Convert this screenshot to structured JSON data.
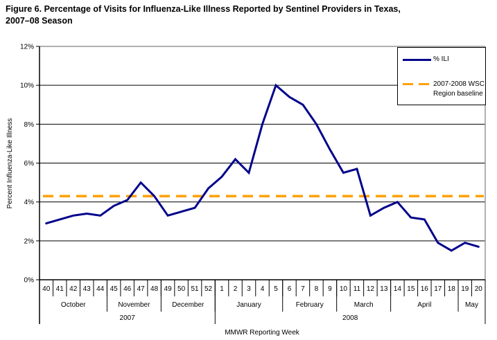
{
  "title": {
    "line1": "Figure 6. Percentage of Visits for Influenza-Like Illness Reported by Sentinel Providers in Texas,",
    "line2": "2007–08 Season"
  },
  "legend": {
    "ili_label": "% ILI",
    "baseline_line1": "2007-2008 WSC",
    "baseline_line2": "Region baseline"
  },
  "chart_data": {
    "type": "line",
    "title": "Figure 6. Percentage of Visits for Influenza-Like Illness Reported by Sentinel Providers in Texas, 2007–08 Season",
    "xlabel": "MMWR Reporting Week",
    "ylabel": "Percent Influenza-Like Illness",
    "ylim": [
      0,
      12
    ],
    "ytick_interval": 2,
    "ytick_labels": [
      "0%",
      "2%",
      "4%",
      "6%",
      "8%",
      "10%",
      "12%"
    ],
    "grid": "horizontal",
    "legend_position": "top-right",
    "categories": [
      "40",
      "41",
      "42",
      "43",
      "44",
      "45",
      "46",
      "47",
      "48",
      "49",
      "50",
      "51",
      "52",
      "1",
      "2",
      "3",
      "4",
      "5",
      "6",
      "7",
      "8",
      "9",
      "10",
      "11",
      "12",
      "13",
      "14",
      "15",
      "16",
      "17",
      "18",
      "19",
      "20"
    ],
    "month_groups": [
      {
        "label": "October",
        "weeks": 5
      },
      {
        "label": "November",
        "weeks": 4
      },
      {
        "label": "December",
        "weeks": 4
      },
      {
        "label": "January",
        "weeks": 5
      },
      {
        "label": "February",
        "weeks": 4
      },
      {
        "label": "March",
        "weeks": 4
      },
      {
        "label": "April",
        "weeks": 5
      },
      {
        "label": "May",
        "weeks": 2
      }
    ],
    "year_groups": [
      {
        "label": "2007",
        "weeks": 13
      },
      {
        "label": "2008",
        "weeks": 20
      }
    ],
    "series": [
      {
        "name": "% ILI",
        "type": "line",
        "style": "solid",
        "color": "#00008B",
        "values": [
          2.9,
          3.1,
          3.3,
          3.4,
          3.3,
          3.8,
          4.1,
          5.0,
          4.3,
          3.3,
          3.5,
          3.7,
          4.7,
          5.3,
          6.2,
          5.5,
          8.0,
          10.0,
          9.4,
          9.0,
          8.0,
          6.7,
          5.5,
          5.7,
          3.3,
          3.7,
          4.0,
          3.2,
          3.1,
          1.9,
          1.5,
          1.9,
          1.7
        ]
      },
      {
        "name": "2007-2008 WSC Region baseline",
        "type": "horizontal-line",
        "style": "dashed",
        "color": "#FFA000",
        "value": 4.3
      }
    ]
  }
}
